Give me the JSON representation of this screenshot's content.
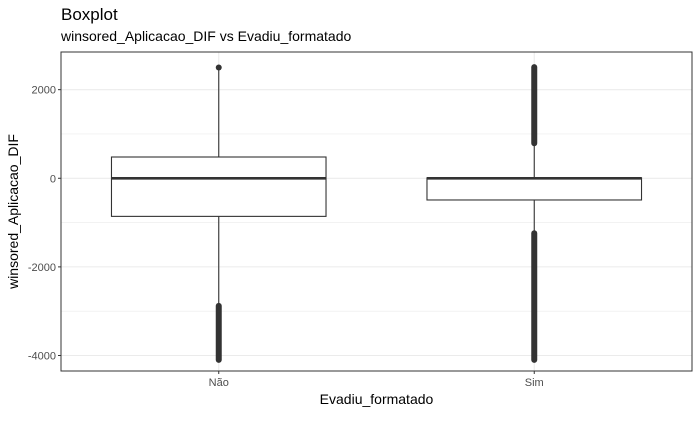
{
  "chart_data": {
    "type": "boxplot",
    "title": "Boxplot",
    "subtitle": "winsored_Aplicacao_DIF vs Evadiu_formatado",
    "xlabel": "Evadiu_formatado",
    "ylabel": "winsored_Aplicacao_DIF",
    "categories": [
      "Não",
      "Sim"
    ],
    "ylim": [
      -4350,
      2850
    ],
    "yticks": [
      -4000,
      -2000,
      0,
      2000
    ],
    "ytick_labels": [
      "-4000",
      "-2000",
      "0",
      "2000"
    ],
    "grid": true,
    "boxes": [
      {
        "category": "Não",
        "q1": -860,
        "median": 0,
        "q3": 480,
        "whisker_low": -2870,
        "whisker_high": 2500,
        "outliers_low": [
          -2880,
          -4100
        ],
        "outliers_high": [
          2500,
          2500
        ]
      },
      {
        "category": "Sim",
        "q1": -490,
        "median": 0,
        "q3": 10,
        "whisker_low": -1230,
        "whisker_high": 780,
        "outliers_low": [
          -1240,
          -4100
        ],
        "outliers_high": [
          790,
          2510
        ]
      }
    ]
  },
  "colors": {
    "panel_border": "#333333",
    "grid": "#ebebeb",
    "box_line": "#333333",
    "box_fill": "#ffffff",
    "outlier": "#333333"
  }
}
